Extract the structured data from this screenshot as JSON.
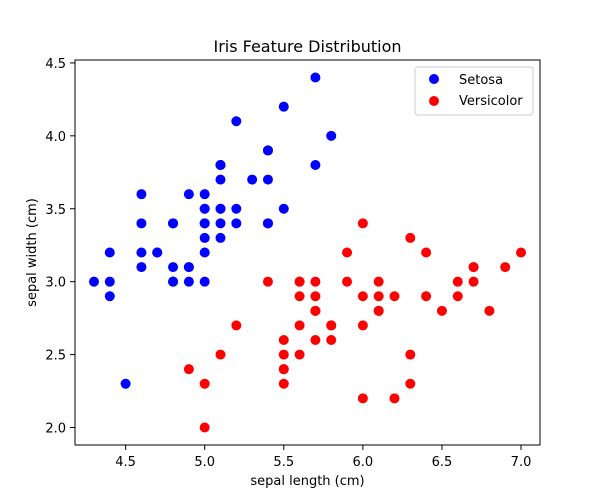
{
  "chart_data": {
    "type": "scatter",
    "title": "Iris Feature Distribution",
    "xlabel": "sepal length (cm)",
    "ylabel": "sepal width (cm)",
    "xlim": [
      4.18,
      7.12
    ],
    "ylim": [
      1.88,
      4.52
    ],
    "xticks": [
      4.5,
      5.0,
      5.5,
      6.0,
      6.5,
      7.0
    ],
    "xtick_labels": [
      "4.5",
      "5.0",
      "5.5",
      "6.0",
      "6.5",
      "7.0"
    ],
    "yticks": [
      2.0,
      2.5,
      3.0,
      3.5,
      4.0,
      4.5
    ],
    "ytick_labels": [
      "2.0",
      "2.5",
      "3.0",
      "3.5",
      "4.0",
      "4.5"
    ],
    "grid": false,
    "legend_position": "top-right",
    "series": [
      {
        "name": "Setosa",
        "color": "#0000ff",
        "points": [
          [
            5.1,
            3.5
          ],
          [
            4.9,
            3.0
          ],
          [
            4.7,
            3.2
          ],
          [
            4.6,
            3.1
          ],
          [
            5.0,
            3.6
          ],
          [
            5.4,
            3.9
          ],
          [
            4.6,
            3.4
          ],
          [
            5.0,
            3.4
          ],
          [
            4.4,
            2.9
          ],
          [
            4.9,
            3.1
          ],
          [
            5.4,
            3.7
          ],
          [
            4.8,
            3.4
          ],
          [
            4.8,
            3.0
          ],
          [
            4.3,
            3.0
          ],
          [
            5.8,
            4.0
          ],
          [
            5.7,
            4.4
          ],
          [
            5.4,
            3.9
          ],
          [
            5.1,
            3.5
          ],
          [
            5.7,
            3.8
          ],
          [
            5.1,
            3.8
          ],
          [
            5.4,
            3.4
          ],
          [
            5.1,
            3.7
          ],
          [
            4.6,
            3.6
          ],
          [
            5.1,
            3.3
          ],
          [
            4.8,
            3.4
          ],
          [
            5.0,
            3.0
          ],
          [
            5.0,
            3.4
          ],
          [
            5.2,
            3.5
          ],
          [
            5.2,
            3.4
          ],
          [
            4.7,
            3.2
          ],
          [
            4.8,
            3.1
          ],
          [
            5.4,
            3.4
          ],
          [
            5.2,
            4.1
          ],
          [
            5.5,
            4.2
          ],
          [
            4.9,
            3.1
          ],
          [
            5.0,
            3.2
          ],
          [
            5.5,
            3.5
          ],
          [
            4.9,
            3.6
          ],
          [
            4.4,
            3.0
          ],
          [
            5.1,
            3.4
          ],
          [
            5.0,
            3.5
          ],
          [
            4.5,
            2.3
          ],
          [
            4.4,
            3.2
          ],
          [
            5.0,
            3.5
          ],
          [
            5.1,
            3.8
          ],
          [
            4.8,
            3.0
          ],
          [
            5.1,
            3.8
          ],
          [
            4.6,
            3.2
          ],
          [
            5.3,
            3.7
          ],
          [
            5.0,
            3.3
          ]
        ]
      },
      {
        "name": "Versicolor",
        "color": "#ff0000",
        "points": [
          [
            7.0,
            3.2
          ],
          [
            6.4,
            3.2
          ],
          [
            6.9,
            3.1
          ],
          [
            5.5,
            2.3
          ],
          [
            6.5,
            2.8
          ],
          [
            5.7,
            2.8
          ],
          [
            6.3,
            3.3
          ],
          [
            4.9,
            2.4
          ],
          [
            6.6,
            2.9
          ],
          [
            5.2,
            2.7
          ],
          [
            5.0,
            2.0
          ],
          [
            5.9,
            3.0
          ],
          [
            6.0,
            2.2
          ],
          [
            6.1,
            2.9
          ],
          [
            5.6,
            2.9
          ],
          [
            6.7,
            3.1
          ],
          [
            5.6,
            3.0
          ],
          [
            5.8,
            2.7
          ],
          [
            6.2,
            2.2
          ],
          [
            5.6,
            2.5
          ],
          [
            5.9,
            3.2
          ],
          [
            6.1,
            2.8
          ],
          [
            6.3,
            2.5
          ],
          [
            6.1,
            2.8
          ],
          [
            6.4,
            2.9
          ],
          [
            6.6,
            3.0
          ],
          [
            6.8,
            2.8
          ],
          [
            6.7,
            3.0
          ],
          [
            6.0,
            2.9
          ],
          [
            5.7,
            2.6
          ],
          [
            5.5,
            2.4
          ],
          [
            5.5,
            2.4
          ],
          [
            5.8,
            2.7
          ],
          [
            6.0,
            2.7
          ],
          [
            5.4,
            3.0
          ],
          [
            6.0,
            3.4
          ],
          [
            6.7,
            3.1
          ],
          [
            6.3,
            2.3
          ],
          [
            5.6,
            3.0
          ],
          [
            5.5,
            2.5
          ],
          [
            5.5,
            2.6
          ],
          [
            6.1,
            3.0
          ],
          [
            5.8,
            2.6
          ],
          [
            5.0,
            2.3
          ],
          [
            5.6,
            2.7
          ],
          [
            5.7,
            3.0
          ],
          [
            5.7,
            2.9
          ],
          [
            6.2,
            2.9
          ],
          [
            5.1,
            2.5
          ],
          [
            5.7,
            2.8
          ]
        ]
      }
    ]
  }
}
